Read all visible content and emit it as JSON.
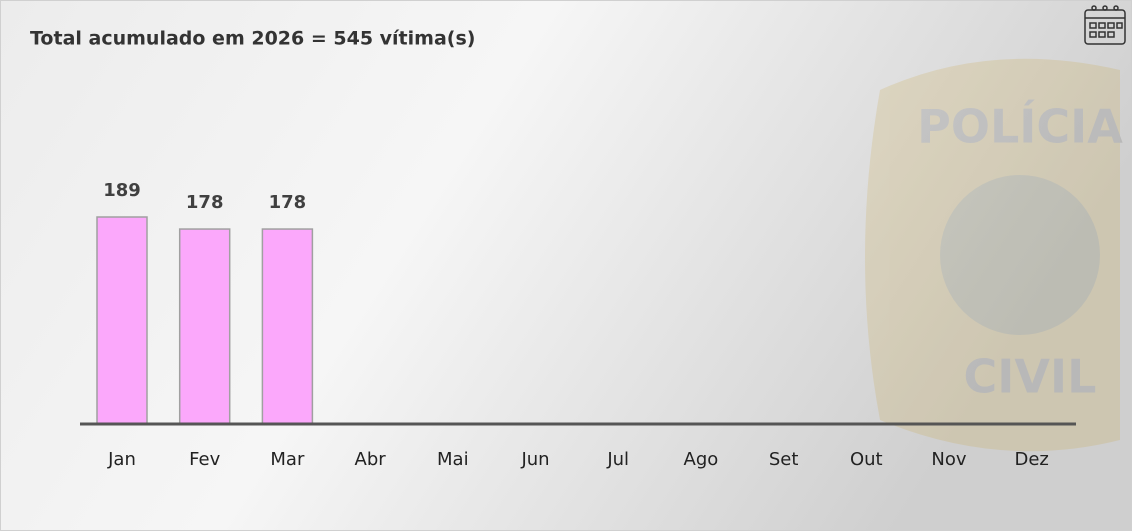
{
  "chart_data": {
    "type": "bar",
    "title": "Total acumulado em 2026 = 545 vítima(s)",
    "categories": [
      "Jan",
      "Fev",
      "Mar",
      "Abr",
      "Mai",
      "Jun",
      "Jul",
      "Ago",
      "Set",
      "Out",
      "Nov",
      "Dez"
    ],
    "values": [
      189,
      178,
      178,
      null,
      null,
      null,
      null,
      null,
      null,
      null,
      null,
      null
    ],
    "color": "#fba8fb"
  }
}
